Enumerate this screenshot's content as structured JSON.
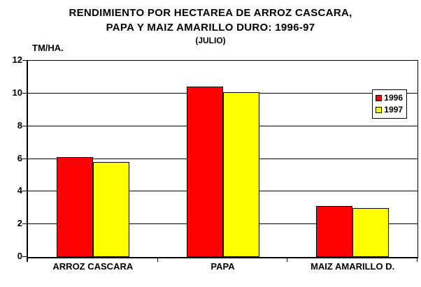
{
  "title": {
    "line1": "RENDIMIENTO POR HECTAREA DE ARROZ CASCARA,",
    "line2": "PAPA Y MAIZ AMARILLO DURO: 1996-97",
    "line3": "(JULIO)"
  },
  "axis_unit_label": "TM/HA.",
  "colors": {
    "series_1996": "#FF0000",
    "series_1997": "#FFFF00",
    "axis": "#000000",
    "background": "#FFFFFF",
    "legend_background": "#FFFFFF"
  },
  "legend": {
    "items": [
      {
        "label": "1996",
        "color": "#FF0000"
      },
      {
        "label": "1997",
        "color": "#FFFF00"
      }
    ]
  },
  "chart_data": {
    "type": "bar",
    "title": "RENDIMIENTO POR HECTAREA DE ARROZ CASCARA, PAPA Y MAIZ AMARILLO DURO: 1996-97 (JULIO)",
    "categories": [
      "ARROZ CASCARA",
      "PAPA",
      "MAIZ AMARILLO D."
    ],
    "series": [
      {
        "name": "1996",
        "color": "#FF0000",
        "values": [
          6.1,
          10.4,
          3.1
        ]
      },
      {
        "name": "1997",
        "color": "#FFFF00",
        "values": [
          5.8,
          10.1,
          3.0
        ]
      }
    ],
    "xlabel": "",
    "ylabel": "TM/HA.",
    "ylim": [
      0,
      12
    ],
    "yticks": [
      0,
      2,
      4,
      6,
      8,
      10,
      12
    ],
    "grid": true,
    "legend_position": "top-right-inside"
  }
}
